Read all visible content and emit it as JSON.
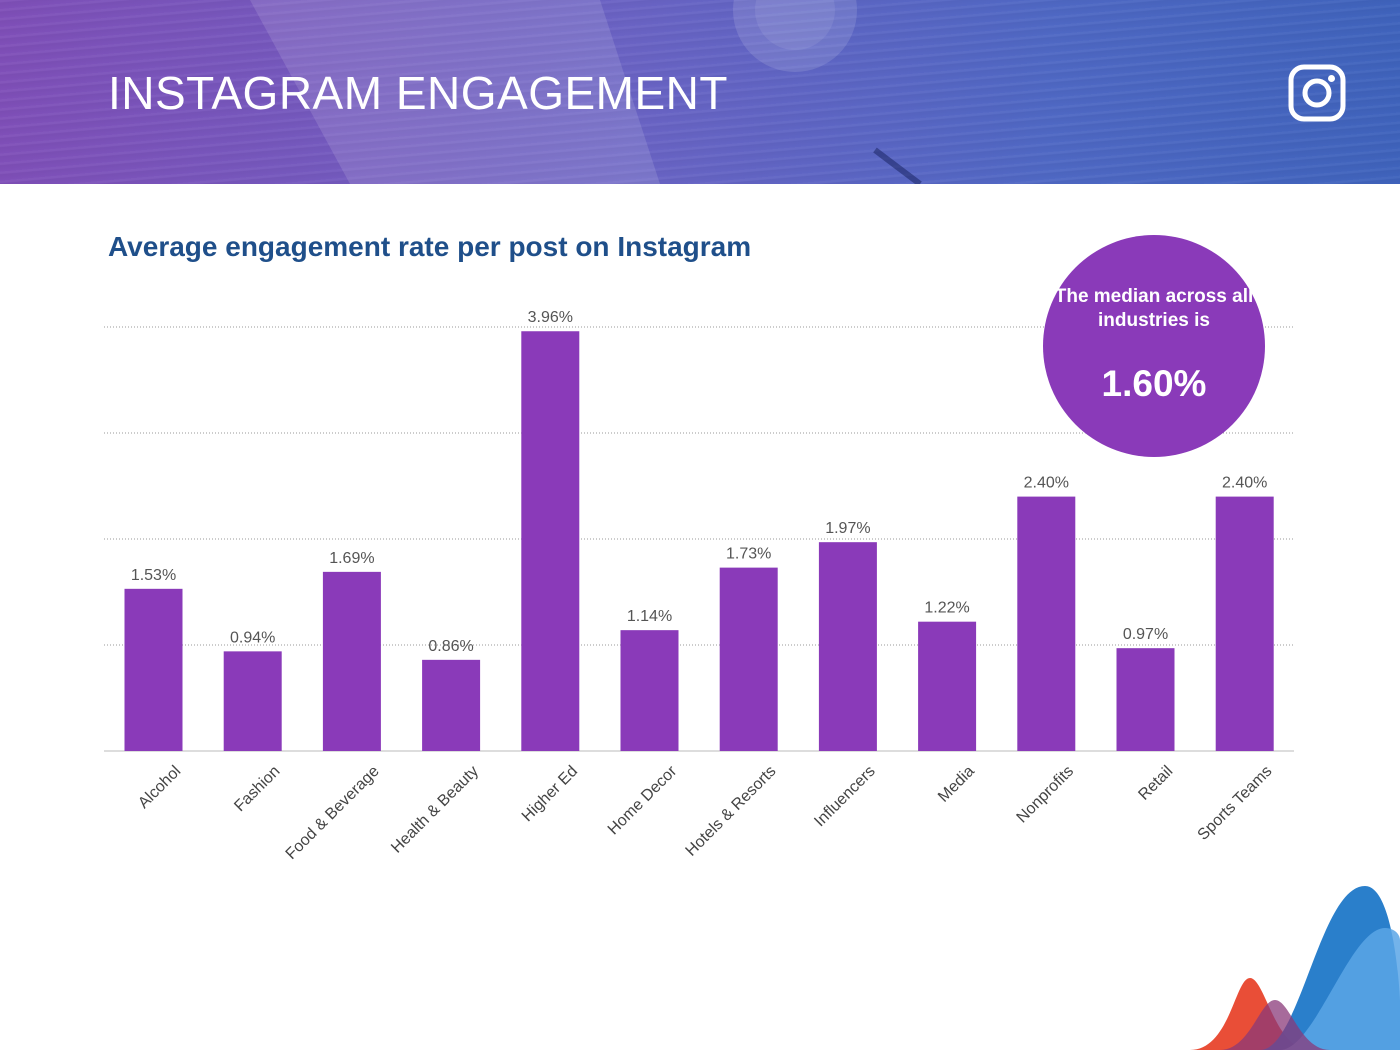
{
  "header": {
    "title": "INSTAGRAM ENGAGEMENT",
    "icon": "instagram-icon"
  },
  "median_callout": {
    "text": "The median across all industries is",
    "value": "1.60%"
  },
  "colors": {
    "bar": "#8a3ab9",
    "title": "#1f4f8a",
    "circle": "#8a3ab9"
  },
  "chart_data": {
    "type": "bar",
    "title": "Average engagement rate per post on Instagram",
    "categories": [
      "Alcohol",
      "Fashion",
      "Food & Beverage",
      "Health & Beauty",
      "Higher Ed",
      "Home Decor",
      "Hotels & Resorts",
      "Influencers",
      "Media",
      "Nonprofits",
      "Retail",
      "Sports Teams"
    ],
    "values": [
      1.53,
      0.94,
      1.69,
      0.86,
      3.96,
      1.14,
      1.73,
      1.97,
      1.22,
      2.4,
      0.97,
      2.4
    ],
    "value_labels": [
      "1.53%",
      "0.94%",
      "1.69%",
      "0.86%",
      "3.96%",
      "1.14%",
      "1.73%",
      "1.97%",
      "1.22%",
      "2.40%",
      "0.97%",
      "2.40%"
    ],
    "xlabel": "",
    "ylabel": "",
    "ylim": [
      0,
      4
    ],
    "gridlines": [
      1,
      2,
      3,
      4
    ],
    "grid": true
  }
}
